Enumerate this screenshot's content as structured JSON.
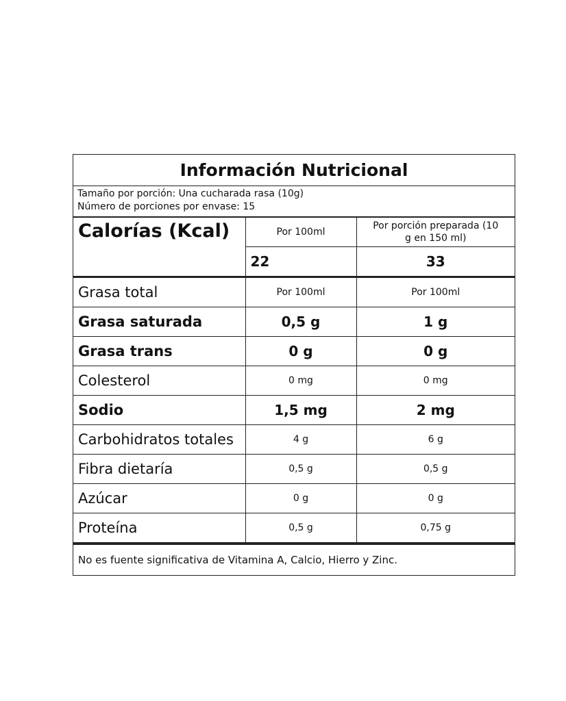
{
  "title": "Información Nutricional",
  "serving_size": "Tamaño por porción: Una cucharada rasa (10g)",
  "servings_per_container": "Número de porciones por envase: 15",
  "calories": {
    "label": "Calorías (Kcal)",
    "col1_header": "Por 100ml",
    "col2_header": "Por porción preparada (10 g en 150 ml)",
    "col1_value": "22",
    "col2_value": "33"
  },
  "nutrients": [
    {
      "name": "Grasa total",
      "col1": "Por 100ml",
      "col2": "Por 100ml",
      "bold": false
    },
    {
      "name": "Grasa saturada",
      "col1": "0,5 g",
      "col2": "1 g",
      "bold": true
    },
    {
      "name": "Grasa trans",
      "col1": "0 g",
      "col2": "0 g",
      "bold": true
    },
    {
      "name": "Colesterol",
      "col1": "0 mg",
      "col2": "0 mg",
      "bold": false
    },
    {
      "name": "Sodio",
      "col1": "1,5 mg",
      "col2": "2 mg",
      "bold": true
    },
    {
      "name": "Carbohidratos totales",
      "col1": "4 g",
      "col2": "6 g",
      "bold": false
    },
    {
      "name": "Fibra dietaría",
      "col1": "0,5 g",
      "col2": "0,5 g",
      "bold": false
    },
    {
      "name": "Azúcar",
      "col1": "0 g",
      "col2": "0 g",
      "bold": false
    },
    {
      "name": "Proteína",
      "col1": "0,5 g",
      "col2": "0,75 g",
      "bold": false
    }
  ],
  "footer": "No es fuente significativa de Vitamina A, Calcio, Hierro y Zinc."
}
